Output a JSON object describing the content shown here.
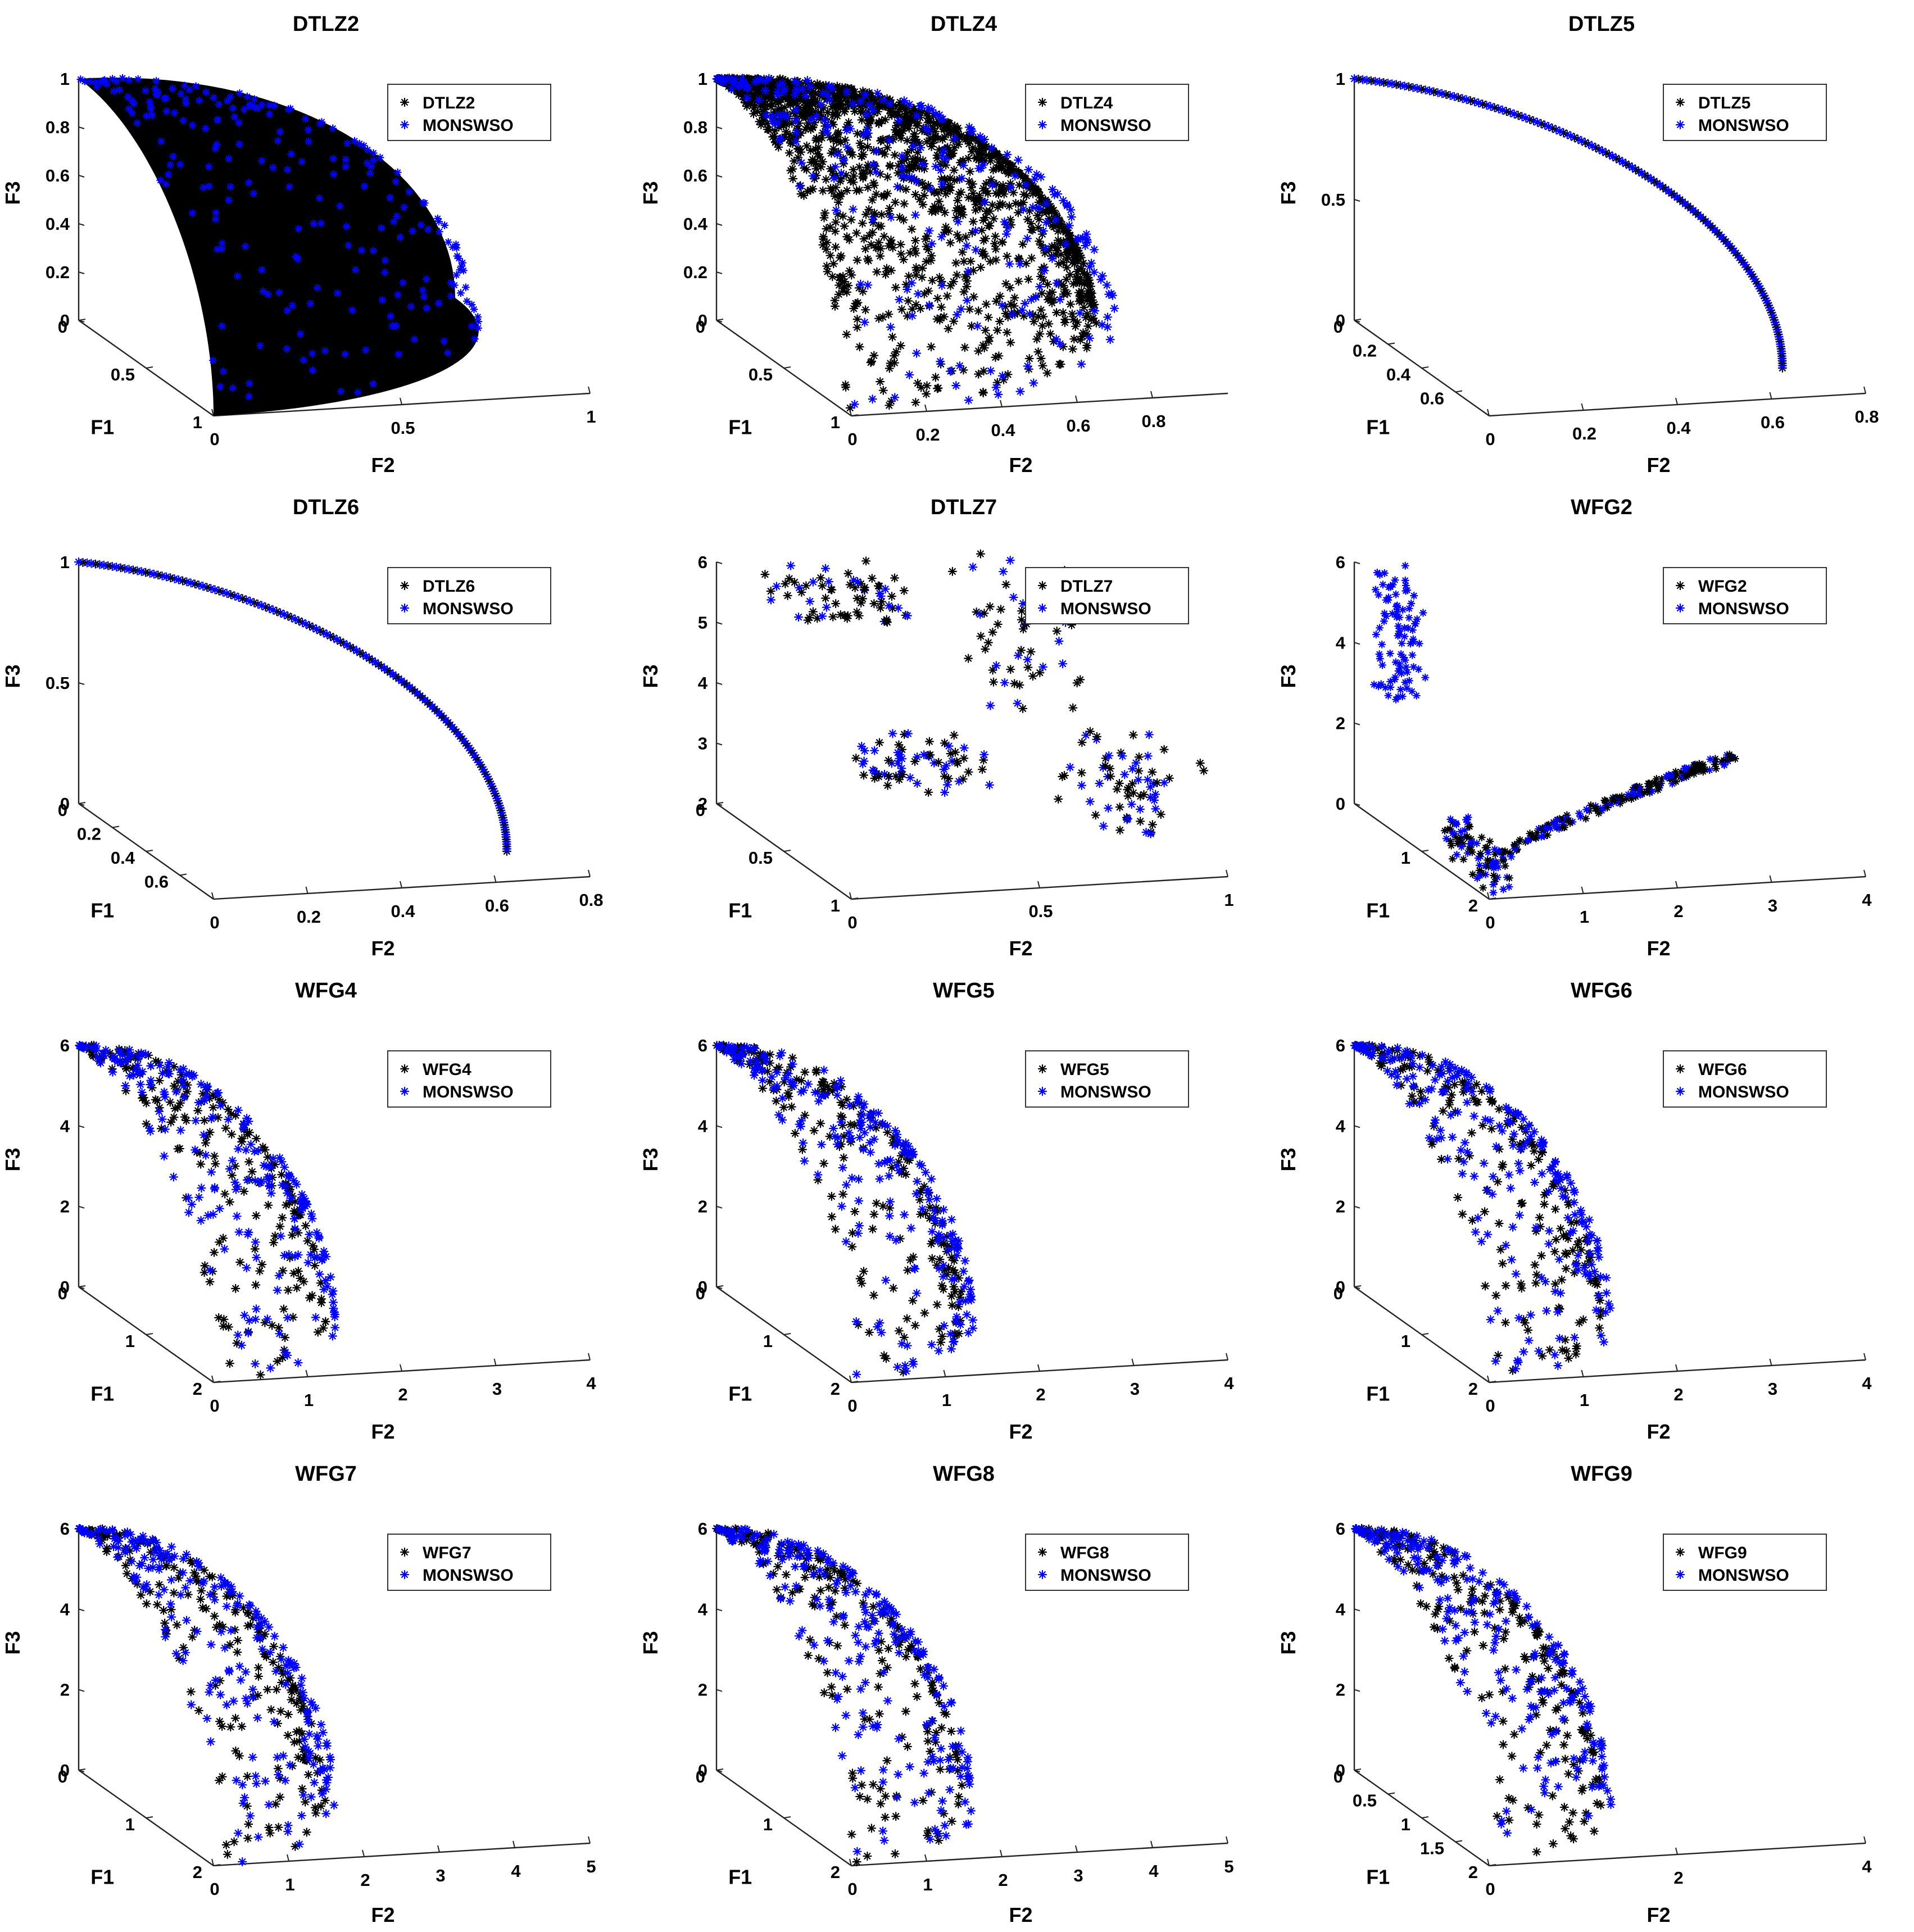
{
  "figure": {
    "rows": 4,
    "cols": 3
  },
  "colors": {
    "true_front": "#000000",
    "algorithm": "#0000ff",
    "axis": "#222222",
    "background": "#ffffff"
  },
  "legend_algorithm": "MONSWSO",
  "axis_labels": {
    "x": "F1",
    "y": "F2",
    "z": "F3"
  },
  "chart_data": [
    {
      "type": "scatter",
      "title": "DTLZ2",
      "shape": "sphere",
      "xlim": [
        0,
        1
      ],
      "ylim": [
        0,
        1
      ],
      "zlim": [
        0,
        1
      ],
      "f1_ticks": [
        0,
        0.5,
        1
      ],
      "f2_ticks": [
        0,
        0.5,
        1
      ],
      "f3_ticks": [
        0,
        0.2,
        0.4,
        0.6,
        0.8,
        1
      ],
      "xlabel": "F1",
      "ylabel": "F2",
      "zlabel": "F3",
      "series": [
        {
          "name": "DTLZ2",
          "marker": "*",
          "color": "#000000"
        },
        {
          "name": "MONSWSO",
          "marker": "*",
          "color": "#0000ff"
        }
      ],
      "legend": "top-right"
    },
    {
      "type": "scatter",
      "title": "DTLZ4",
      "shape": "sphere-sparse",
      "xlim": [
        0,
        1
      ],
      "ylim": [
        0,
        1
      ],
      "zlim": [
        0,
        1
      ],
      "f1_ticks": [
        0,
        0.5,
        1
      ],
      "f2_ticks": [
        0,
        0.2,
        0.4,
        0.6,
        0.8
      ],
      "f3_ticks": [
        0,
        0.2,
        0.4,
        0.6,
        0.8,
        1
      ],
      "xlabel": "F1",
      "ylabel": "F2",
      "zlabel": "F3",
      "series": [
        {
          "name": "DTLZ4",
          "marker": "*",
          "color": "#000000"
        },
        {
          "name": "MONSWSO",
          "marker": "*",
          "color": "#0000ff"
        }
      ],
      "legend": "top-right"
    },
    {
      "type": "scatter",
      "title": "DTLZ5",
      "shape": "curve",
      "xlim": [
        0,
        0.8
      ],
      "ylim": [
        0,
        0.8
      ],
      "zlim": [
        0,
        1
      ],
      "f1_ticks": [
        0,
        0.2,
        0.4,
        0.6
      ],
      "f2_ticks": [
        0,
        0.2,
        0.4,
        0.6,
        0.8
      ],
      "f3_ticks": [
        0,
        0.5,
        1
      ],
      "xlabel": "F1",
      "ylabel": "F2",
      "zlabel": "F3",
      "series": [
        {
          "name": "DTLZ5",
          "marker": "*",
          "color": "#000000"
        },
        {
          "name": "MONSWSO",
          "marker": "*",
          "color": "#0000ff"
        }
      ],
      "legend": "top-right"
    },
    {
      "type": "scatter",
      "title": "DTLZ6",
      "shape": "curve",
      "xlim": [
        0,
        0.8
      ],
      "ylim": [
        0,
        0.8
      ],
      "zlim": [
        0,
        1
      ],
      "f1_ticks": [
        0,
        0.2,
        0.4,
        0.6
      ],
      "f2_ticks": [
        0,
        0.2,
        0.4,
        0.6,
        0.8
      ],
      "f3_ticks": [
        0,
        0.5,
        1
      ],
      "xlabel": "F1",
      "ylabel": "F2",
      "zlabel": "F3",
      "series": [
        {
          "name": "DTLZ6",
          "marker": "*",
          "color": "#000000"
        },
        {
          "name": "MONSWSO",
          "marker": "*",
          "color": "#0000ff"
        }
      ],
      "legend": "top-right"
    },
    {
      "type": "scatter",
      "title": "DTLZ7",
      "shape": "patches",
      "xlim": [
        0,
        1
      ],
      "ylim": [
        0,
        1
      ],
      "zlim": [
        2,
        6
      ],
      "f1_ticks": [
        0,
        0.5,
        1
      ],
      "f2_ticks": [
        0,
        0.5,
        1
      ],
      "f3_ticks": [
        2,
        3,
        4,
        5,
        6
      ],
      "xlabel": "F1",
      "ylabel": "F2",
      "zlabel": "F3",
      "series": [
        {
          "name": "DTLZ7",
          "marker": "*",
          "color": "#000000"
        },
        {
          "name": "MONSWSO",
          "marker": "*",
          "color": "#0000ff"
        }
      ],
      "legend": "top-right"
    },
    {
      "type": "scatter",
      "title": "WFG2",
      "shape": "wfg2",
      "xlim": [
        0,
        2
      ],
      "ylim": [
        0,
        4
      ],
      "zlim": [
        0,
        6
      ],
      "f1_ticks": [
        1,
        2
      ],
      "f2_ticks": [
        0,
        1,
        2,
        3,
        4
      ],
      "f3_ticks": [
        0,
        2,
        4,
        6
      ],
      "xlabel": "F1",
      "ylabel": "F2",
      "zlabel": "F3",
      "series": [
        {
          "name": "WFG2",
          "marker": "*",
          "color": "#000000"
        },
        {
          "name": "MONSWSO",
          "marker": "*",
          "color": "#0000ff"
        }
      ],
      "legend": "top-right"
    },
    {
      "type": "scatter",
      "title": "WFG4",
      "shape": "ellipsoid",
      "xlim": [
        0,
        2
      ],
      "ylim": [
        0,
        4
      ],
      "zlim": [
        0,
        6
      ],
      "f1_ticks": [
        0,
        1,
        2
      ],
      "f2_ticks": [
        0,
        1,
        2,
        3,
        4
      ],
      "f3_ticks": [
        0,
        2,
        4,
        6
      ],
      "xlabel": "F1",
      "ylabel": "F2",
      "zlabel": "F3",
      "series": [
        {
          "name": "WFG4",
          "marker": "*",
          "color": "#000000"
        },
        {
          "name": "MONSWSO",
          "marker": "*",
          "color": "#0000ff"
        }
      ],
      "legend": "top-right"
    },
    {
      "type": "scatter",
      "title": "WFG5",
      "shape": "ellipsoid",
      "xlim": [
        0,
        2
      ],
      "ylim": [
        0,
        4
      ],
      "zlim": [
        0,
        6
      ],
      "f1_ticks": [
        0,
        1,
        2
      ],
      "f2_ticks": [
        0,
        1,
        2,
        3,
        4
      ],
      "f3_ticks": [
        0,
        2,
        4,
        6
      ],
      "xlabel": "F1",
      "ylabel": "F2",
      "zlabel": "F3",
      "series": [
        {
          "name": "WFG5",
          "marker": "*",
          "color": "#000000"
        },
        {
          "name": "MONSWSO",
          "marker": "*",
          "color": "#0000ff"
        }
      ],
      "legend": "top-right"
    },
    {
      "type": "scatter",
      "title": "WFG6",
      "shape": "ellipsoid",
      "xlim": [
        0,
        2
      ],
      "ylim": [
        0,
        4
      ],
      "zlim": [
        0,
        6
      ],
      "f1_ticks": [
        0,
        1,
        2
      ],
      "f2_ticks": [
        0,
        1,
        2,
        3,
        4
      ],
      "f3_ticks": [
        0,
        2,
        4,
        6
      ],
      "xlabel": "F1",
      "ylabel": "F2",
      "zlabel": "F3",
      "series": [
        {
          "name": "WFG6",
          "marker": "*",
          "color": "#000000"
        },
        {
          "name": "MONSWSO",
          "marker": "*",
          "color": "#0000ff"
        }
      ],
      "legend": "top-right"
    },
    {
      "type": "scatter",
      "title": "WFG7",
      "shape": "ellipsoid",
      "xlim": [
        0,
        2
      ],
      "ylim": [
        0,
        5
      ],
      "zlim": [
        0,
        6
      ],
      "f1_ticks": [
        0,
        1,
        2
      ],
      "f2_ticks": [
        0,
        1,
        2,
        3,
        4,
        5
      ],
      "f3_ticks": [
        0,
        2,
        4,
        6
      ],
      "xlabel": "F1",
      "ylabel": "F2",
      "zlabel": "F3",
      "series": [
        {
          "name": "WFG7",
          "marker": "*",
          "color": "#000000"
        },
        {
          "name": "MONSWSO",
          "marker": "*",
          "color": "#0000ff"
        }
      ],
      "legend": "top-right"
    },
    {
      "type": "scatter",
      "title": "WFG8",
      "shape": "ellipsoid",
      "xlim": [
        0,
        2
      ],
      "ylim": [
        0,
        5
      ],
      "zlim": [
        0,
        6
      ],
      "f1_ticks": [
        0,
        1,
        2
      ],
      "f2_ticks": [
        0,
        1,
        2,
        3,
        4,
        5
      ],
      "f3_ticks": [
        0,
        2,
        4,
        6
      ],
      "xlabel": "F1",
      "ylabel": "F2",
      "zlabel": "F3",
      "series": [
        {
          "name": "WFG8",
          "marker": "*",
          "color": "#000000"
        },
        {
          "name": "MONSWSO",
          "marker": "*",
          "color": "#0000ff"
        }
      ],
      "legend": "top-right"
    },
    {
      "type": "scatter",
      "title": "WFG9",
      "shape": "ellipsoid",
      "xlim": [
        0,
        2
      ],
      "ylim": [
        0,
        4
      ],
      "zlim": [
        0,
        6
      ],
      "f1_ticks": [
        0,
        0.5,
        1,
        1.5,
        2
      ],
      "f2_ticks": [
        0,
        2,
        4
      ],
      "f3_ticks": [
        0,
        2,
        4,
        6
      ],
      "xlabel": "F1",
      "ylabel": "F2",
      "zlabel": "F3",
      "series": [
        {
          "name": "WFG9",
          "marker": "*",
          "color": "#000000"
        },
        {
          "name": "MONSWSO",
          "marker": "*",
          "color": "#0000ff"
        }
      ],
      "legend": "top-right"
    }
  ]
}
